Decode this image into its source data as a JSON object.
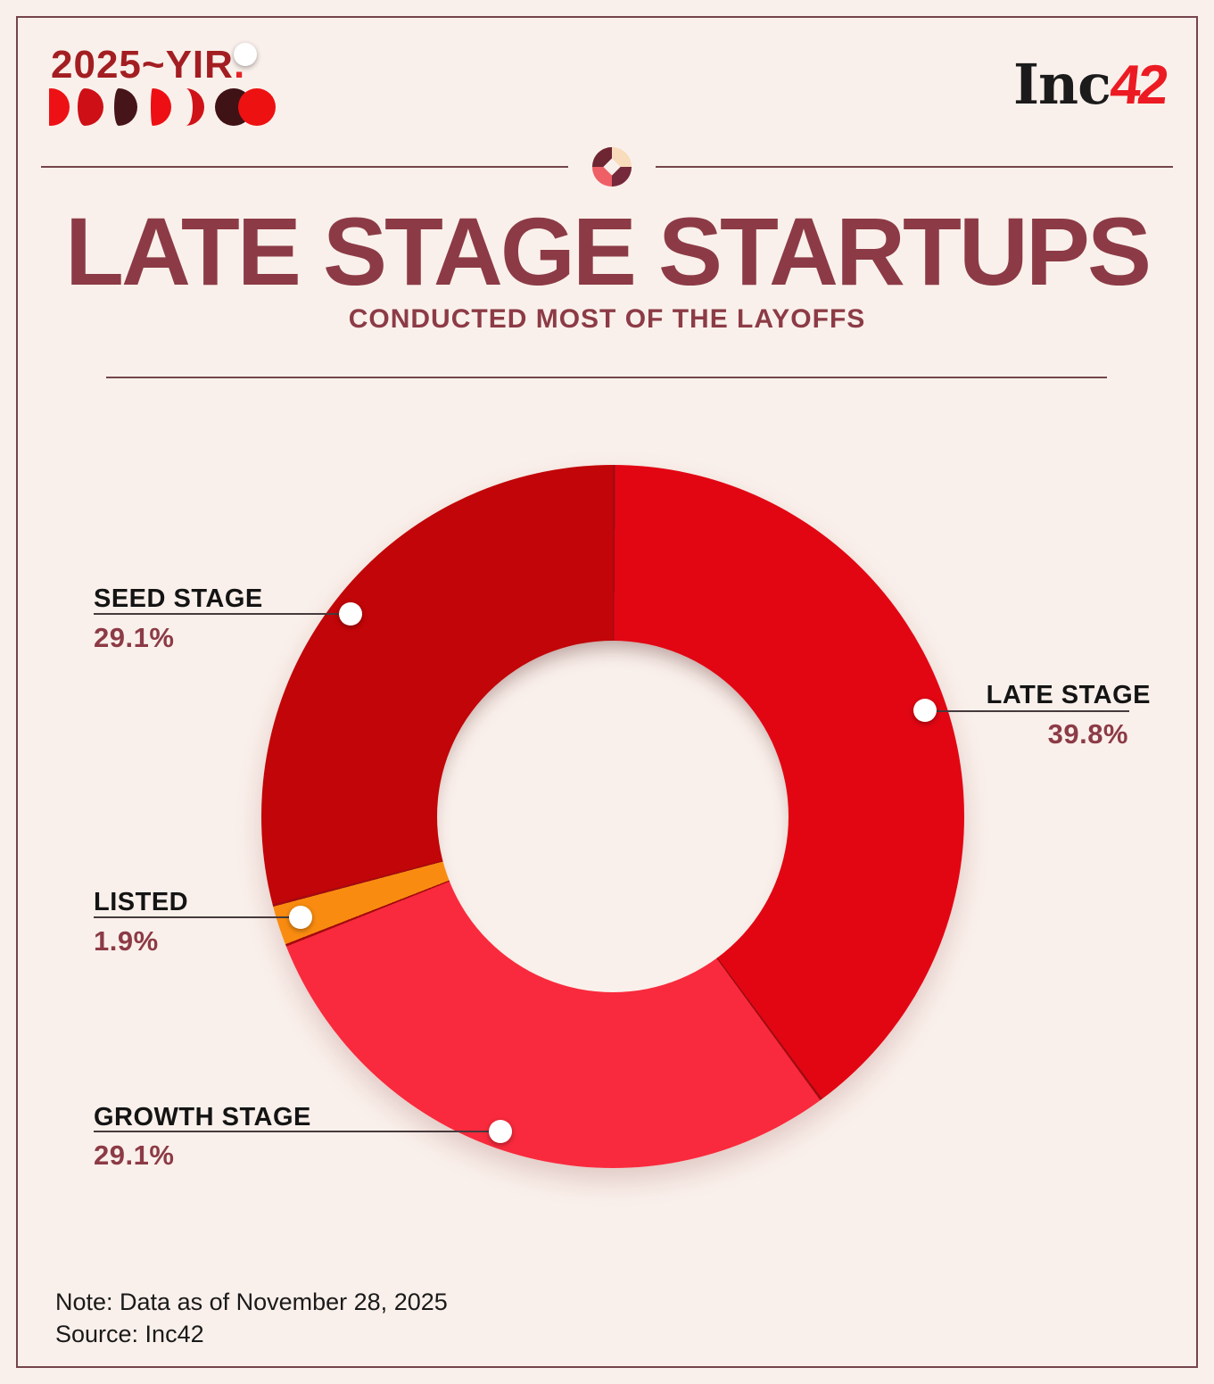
{
  "theme": {
    "background": "#FAF0EB",
    "frame_border": "#74454B",
    "title_color": "#8C3B46",
    "brand_red": "#A31E22",
    "brand_dot": "#E42328",
    "inc_black": "#1B1B1B",
    "inc_red": "#EC1B23",
    "label_color": "#141414",
    "percent_color": "#8C3B46",
    "callout_line": "#473A3C",
    "segment_separator": "#A30B10"
  },
  "brand": {
    "text": "2025~YIR",
    "dot": ".",
    "inc": "Inc",
    "num": "42",
    "moons": [
      "#ED1115",
      "#CE0F16",
      "#46151A",
      "#ED0F13",
      "#CF1218",
      "#3F1216",
      "#EE1111"
    ]
  },
  "ornament": {
    "petals": [
      "#6E2633",
      "#F8DCBB",
      "#EF5F66",
      "#75293A"
    ]
  },
  "title": {
    "main": "LATE STAGE STARTUPS",
    "subtitle": "CONDUCTED MOST OF THE LAYOFFS"
  },
  "chart_data": {
    "type": "pie",
    "donut": true,
    "inner_radius_ratio": 0.5,
    "start_angle_deg": 0,
    "direction": "clockwise",
    "title": "Late Stage Startups conducted most of the layoffs",
    "legend_position": "callout-labels",
    "segments": [
      {
        "label": "LATE STAGE",
        "value": 39.8,
        "pct_text": "39.8%",
        "color": "#E20613"
      },
      {
        "label": "GROWTH STAGE",
        "value": 29.1,
        "pct_text": "29.1%",
        "color": "#F92A3D"
      },
      {
        "label": "LISTED",
        "value": 1.9,
        "pct_text": "1.9%",
        "color": "#F98C10"
      },
      {
        "label": "SEED STAGE",
        "value": 29.1,
        "pct_text": "29.1%",
        "color": "#C20508"
      }
    ]
  },
  "footer": {
    "note": "Note: Data as of November 28, 2025",
    "source": "Source: Inc42"
  }
}
